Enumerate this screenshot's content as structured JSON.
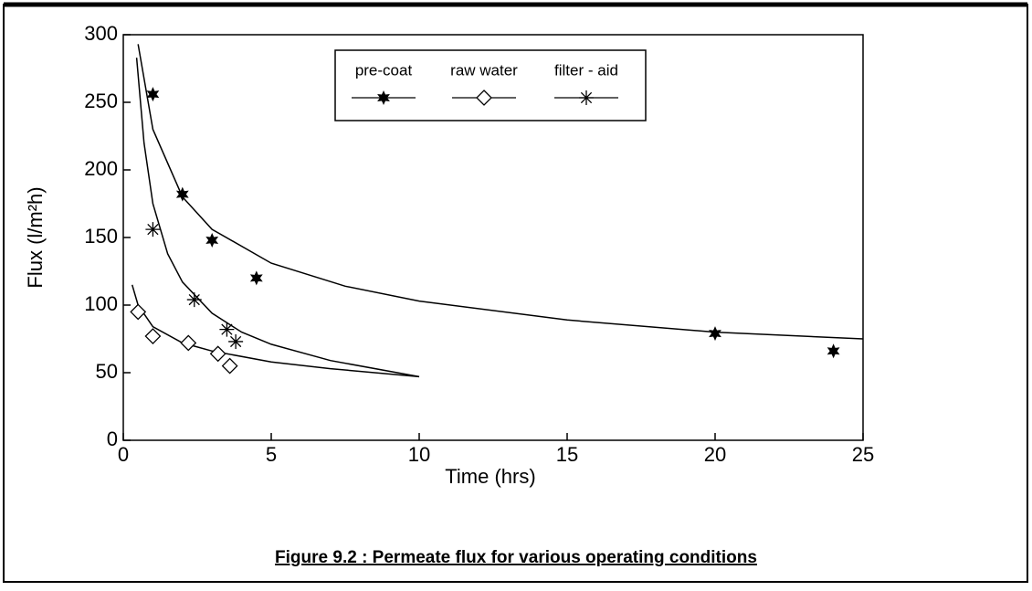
{
  "chart_data": {
    "type": "scatter",
    "caption": "Figure 9.2 :  Permeate flux for various operating conditions",
    "xlabel": "Time (hrs)",
    "ylabel": "Flux (l/m²h)",
    "xlim": [
      0,
      25
    ],
    "xticks": [
      0,
      5,
      10,
      15,
      20,
      25
    ],
    "ylim": [
      0,
      300
    ],
    "yticks": [
      0,
      50,
      100,
      150,
      200,
      250,
      300
    ],
    "legend": "top",
    "series": [
      {
        "name": "pre-coat",
        "marker": "star",
        "color": "#000000",
        "x": [
          1,
          2,
          3,
          4.5,
          20,
          24
        ],
        "values": [
          256,
          182,
          148,
          120,
          79,
          66
        ],
        "curve": {
          "x": [
            0.5,
            1,
            2,
            3,
            5,
            7.5,
            10,
            15,
            20,
            25
          ],
          "values": [
            293,
            230,
            180,
            156,
            131,
            114,
            103,
            89,
            80,
            75
          ]
        }
      },
      {
        "name": "raw water",
        "marker": "diamond",
        "color": "#000000",
        "x": [
          0.5,
          1,
          2.2,
          3.2,
          3.6
        ],
        "values": [
          95,
          77,
          72,
          64,
          55
        ],
        "curve": {
          "x": [
            0.3,
            0.5,
            1,
            2,
            3,
            5,
            7,
            10
          ],
          "values": [
            115,
            100,
            84,
            72,
            66,
            58,
            53,
            47
          ]
        }
      },
      {
        "name": "filter - aid",
        "marker": "asterisk",
        "color": "#000000",
        "x": [
          1,
          2.4,
          3.5,
          3.8
        ],
        "values": [
          156,
          104,
          82,
          73
        ],
        "curve": {
          "x": [
            0.45,
            0.7,
            1,
            1.5,
            2,
            3,
            4,
            5,
            7,
            10
          ],
          "values": [
            283,
            220,
            175,
            138,
            117,
            94,
            80,
            71,
            59,
            47
          ]
        }
      }
    ]
  }
}
